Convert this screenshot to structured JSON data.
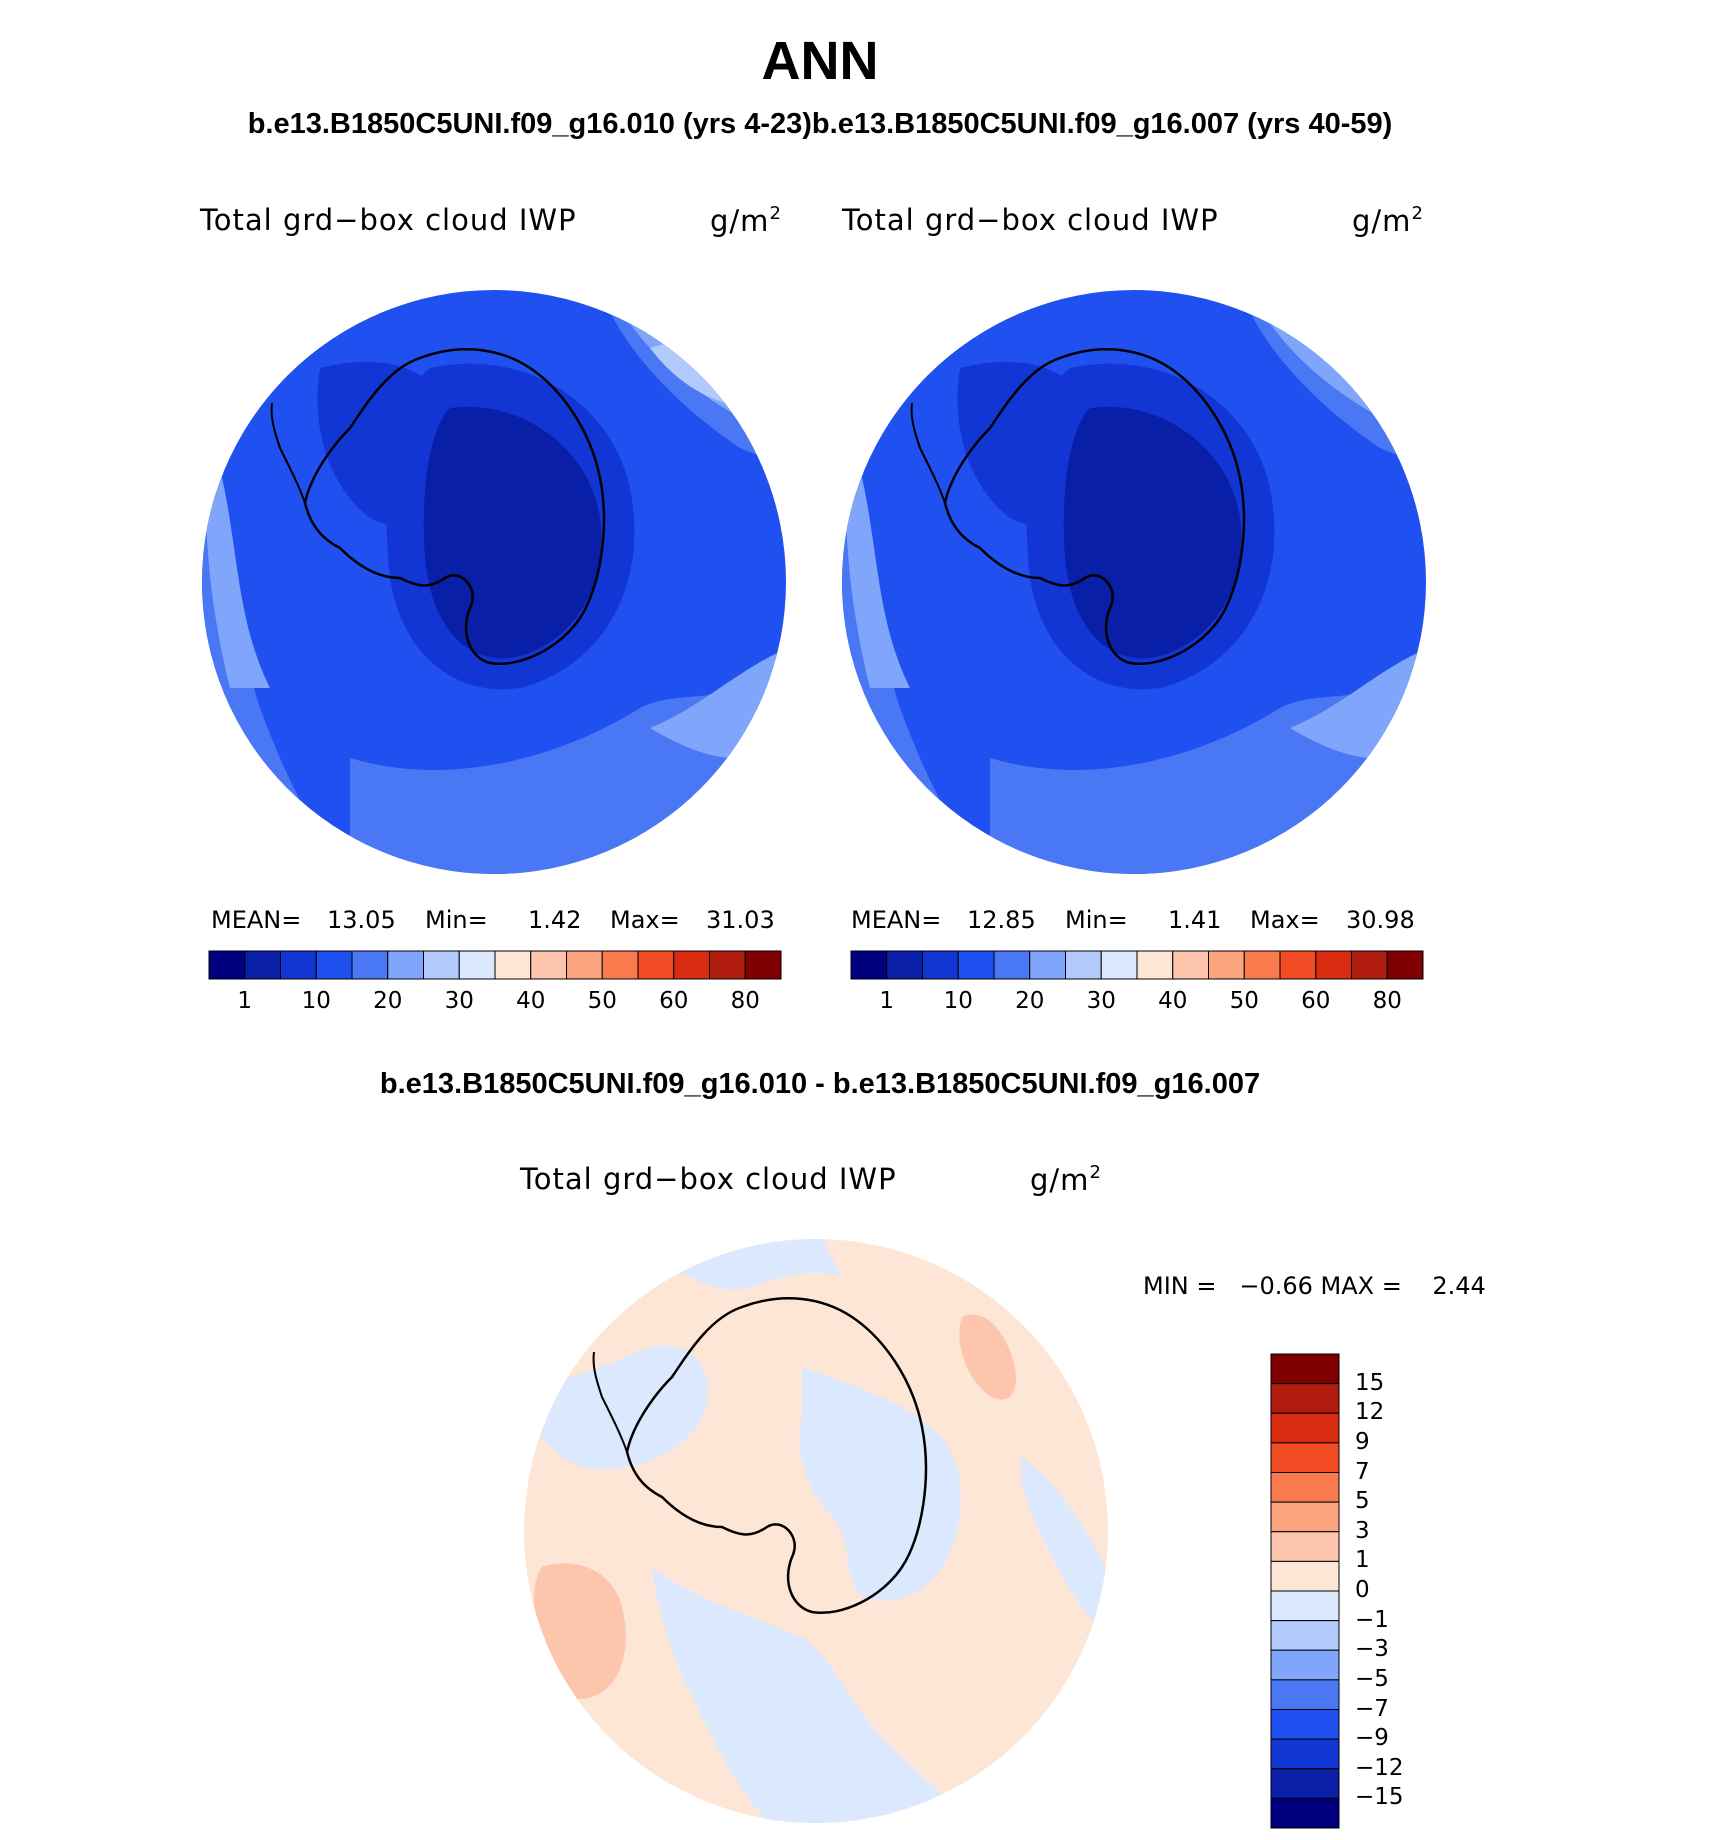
{
  "figure": {
    "title": "ANN",
    "case_title": "b.e13.B1850C5UNI.f09_g16.010 (yrs 4-23)b.e13.B1850C5UNI.f09_g16.007 (yrs 40-59)",
    "diff_title": "b.e13.B1850C5UNI.f09_g16.010 - b.e13.B1850C5UNI.f09_g16.007"
  },
  "panel1": {
    "variable": "Total grd−box cloud IWP",
    "units": "g/m",
    "units_exp": "2",
    "mean_label": "MEAN=",
    "mean": "13.05",
    "min_label": "Min=",
    "min": "1.42",
    "max_label": "Max=",
    "max": "31.03"
  },
  "panel2": {
    "variable": "Total grd−box cloud IWP",
    "units": "g/m",
    "units_exp": "2",
    "mean_label": "MEAN=",
    "mean": "12.85",
    "min_label": "Min=",
    "min": "1.41",
    "max_label": "Max=",
    "max": "30.98"
  },
  "panel3": {
    "variable": "Total grd−box cloud IWP",
    "units": "g/m",
    "units_exp": "2",
    "stats": "MIN =   −0.66 MAX =    2.44"
  },
  "colorbar_abs": {
    "ticks": [
      "1",
      "10",
      "20",
      "30",
      "40",
      "50",
      "60",
      "80"
    ],
    "colors": [
      "#00007f",
      "#0a1fa8",
      "#1236d4",
      "#2050f0",
      "#4a78f5",
      "#7fa6fa",
      "#b1c9fb",
      "#dbe8fd",
      "#fde6d5",
      "#fcc5ac",
      "#fca37f",
      "#f97a4d",
      "#f14c23",
      "#d92b10",
      "#b01c0d",
      "#7f0000"
    ]
  },
  "colorbar_diff": {
    "ticks": [
      "15",
      "12",
      "9",
      "7",
      "5",
      "3",
      "1",
      "0",
      "−1",
      "−3",
      "−5",
      "−7",
      "−9",
      "−12",
      "−15"
    ],
    "colors": [
      "#7f0000",
      "#b01c0d",
      "#d92b10",
      "#f14c23",
      "#f97a4d",
      "#fca37f",
      "#fcc5ac",
      "#fde6d5",
      "#dbe8fd",
      "#b1c9fb",
      "#7fa6fa",
      "#4a78f5",
      "#2050f0",
      "#1236d4",
      "#0a1fa8",
      "#00007f"
    ]
  },
  "map_colors": {
    "abs_background": "#2050f0",
    "abs_ocean_light": "#4a78f5",
    "abs_lighter": "#7fa6fa",
    "abs_lightest": "#b1c9fb",
    "abs_interior_1": "#1236d4",
    "abs_interior_2": "#0a1fa8",
    "diff_positive": "#fde6d5",
    "diff_negative": "#dbe8fd",
    "diff_positive_2": "#fcc5ac"
  }
}
